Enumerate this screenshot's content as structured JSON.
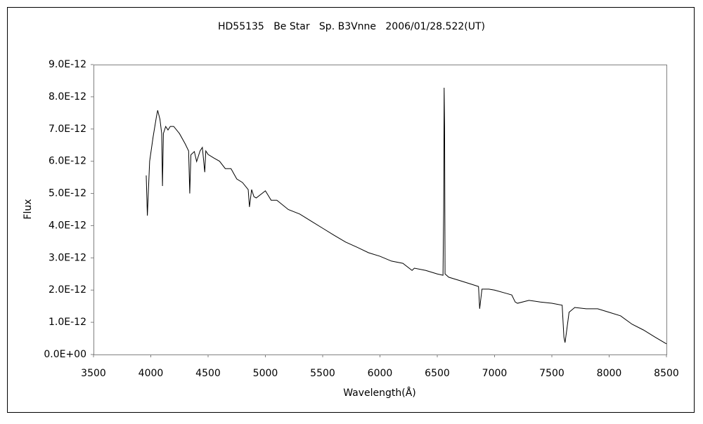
{
  "chart_data": {
    "type": "line",
    "title": "HD55135   Be Star   Sp. B3Vnne   2006/01/28.522(UT)",
    "x_label": "Wavelength(Å)",
    "y_label": "Flux",
    "xlim": [
      3500,
      8500
    ],
    "xticks": [
      3500,
      4000,
      4500,
      5000,
      5500,
      6000,
      6500,
      7000,
      7500,
      8000,
      8500
    ],
    "ylim": [
      0,
      9e-12
    ],
    "yticks": [
      {
        "value": 0,
        "label": "0.0E+00"
      },
      {
        "value": 1e-12,
        "label": "1.0E-12"
      },
      {
        "value": 2e-12,
        "label": "2.0E-12"
      },
      {
        "value": 3e-12,
        "label": "3.0E-12"
      },
      {
        "value": 4e-12,
        "label": "4.0E-12"
      },
      {
        "value": 5e-12,
        "label": "5.0E-12"
      },
      {
        "value": 6e-12,
        "label": "6.0E-12"
      },
      {
        "value": 7e-12,
        "label": "7.0E-12"
      },
      {
        "value": 8e-12,
        "label": "8.0E-12"
      },
      {
        "value": 9e-12,
        "label": "9.0E-12"
      }
    ],
    "grid": false,
    "series": [
      {
        "color": "#000000",
        "x": [
          3960,
          3970,
          3990,
          4020,
          4050,
          4060,
          4080,
          4095,
          4102,
          4110,
          4130,
          4150,
          4170,
          4200,
          4250,
          4300,
          4330,
          4340,
          4350,
          4380,
          4400,
          4430,
          4450,
          4471,
          4480,
          4500,
          4550,
          4600,
          4650,
          4700,
          4750,
          4800,
          4850,
          4861,
          4880,
          4900,
          4920,
          5000,
          5050,
          5100,
          5200,
          5300,
          5400,
          5500,
          5600,
          5700,
          5800,
          5900,
          6000,
          6100,
          6200,
          6280,
          6300,
          6400,
          6500,
          6550,
          6556,
          6560,
          6564,
          6568,
          6600,
          6700,
          6800,
          6860,
          6870,
          6890,
          6950,
          7000,
          7100,
          7150,
          7180,
          7200,
          7300,
          7400,
          7500,
          7590,
          7605,
          7615,
          7630,
          7650,
          7700,
          7800,
          7900,
          8000,
          8100,
          8200,
          8300,
          8400,
          8500
        ],
        "values": [
          5.56e-12,
          4.31e-12,
          6e-12,
          6.75e-12,
          7.4e-12,
          7.58e-12,
          7.3e-12,
          6.86e-12,
          5.23e-12,
          6.86e-12,
          7.08e-12,
          6.97e-12,
          7.08e-12,
          7.08e-12,
          6.86e-12,
          6.54e-12,
          6.32e-12,
          5e-12,
          6.2e-12,
          6.3e-12,
          5.99e-12,
          6.32e-12,
          6.43e-12,
          5.66e-12,
          6.32e-12,
          6.21e-12,
          6.1e-12,
          6e-12,
          5.77e-12,
          5.77e-12,
          5.45e-12,
          5.34e-12,
          5.12e-12,
          4.58e-12,
          5.12e-12,
          4.9e-12,
          4.86e-12,
          5.08e-12,
          4.79e-12,
          4.79e-12,
          4.5e-12,
          4.36e-12,
          4.14e-12,
          3.92e-12,
          3.7e-12,
          3.49e-12,
          3.33e-12,
          3.16e-12,
          3.05e-12,
          2.9e-12,
          2.83e-12,
          2.61e-12,
          2.68e-12,
          2.61e-12,
          2.5e-12,
          2.46e-12,
          4.47e-12,
          8.28e-12,
          7.08e-12,
          2.5e-12,
          2.4e-12,
          2.29e-12,
          2.18e-12,
          2.11e-12,
          1.42e-12,
          2.03e-12,
          2.03e-12,
          2e-12,
          1.9e-12,
          1.85e-12,
          1.63e-12,
          1.59e-12,
          1.68e-12,
          1.63e-12,
          1.59e-12,
          1.53e-12,
          5.4e-13,
          3.7e-13,
          7.6e-13,
          1.31e-12,
          1.46e-12,
          1.42e-12,
          1.42e-12,
          1.31e-12,
          1.2e-12,
          9.4e-13,
          7.6e-13,
          5.4e-13,
          3.3e-13
        ]
      }
    ]
  }
}
